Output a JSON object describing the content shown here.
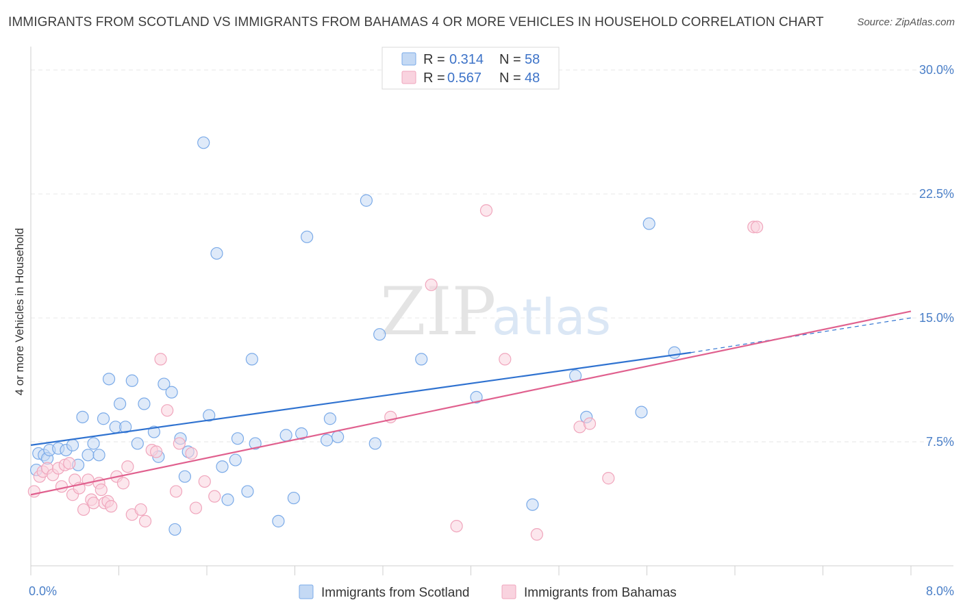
{
  "chart_data": {
    "type": "scatter",
    "title": "IMMIGRANTS FROM SCOTLAND VS IMMIGRANTS FROM BAHAMAS 4 OR MORE VEHICLES IN HOUSEHOLD CORRELATION CHART",
    "source": "Source: ZipAtlas.com",
    "xlabel": "",
    "ylabel": "4 or more Vehicles in Household",
    "xlim": [
      0,
      8
    ],
    "ylim": [
      0,
      31
    ],
    "x_tick_labels": [
      {
        "value": 0,
        "label": "0.0%"
      },
      {
        "value": 8,
        "label": "8.0%"
      }
    ],
    "y_tick_labels": [
      {
        "value": 7.5,
        "label": "7.5%"
      },
      {
        "value": 15,
        "label": "15.0%"
      },
      {
        "value": 22.5,
        "label": "22.5%"
      },
      {
        "value": 30,
        "label": "30.0%"
      }
    ],
    "watermark": {
      "zip": "ZIP",
      "atlas": "atlas"
    },
    "legend": [
      {
        "r_label": "R =",
        "r_value": "0.314",
        "n_label": "N =",
        "n_value": "58"
      },
      {
        "r_label": "R =",
        "r_value": "0.567",
        "n_label": "N =",
        "n_value": "48"
      }
    ],
    "series": [
      {
        "name": "Immigrants from Scotland",
        "color": "#7aaae8",
        "fill": "#c4d9f4",
        "line_color": "#2f72d0",
        "trend": {
          "x0": 0.0,
          "y0": 7.3,
          "x1": 6.0,
          "y1": 12.9,
          "dash_to_x": 8.0,
          "dash_to_y": 15.0
        },
        "points": [
          [
            0.05,
            5.8
          ],
          [
            0.07,
            6.8
          ],
          [
            0.12,
            6.7
          ],
          [
            0.15,
            6.5
          ],
          [
            0.17,
            7.0
          ],
          [
            0.25,
            7.1
          ],
          [
            0.32,
            7.0
          ],
          [
            0.38,
            7.3
          ],
          [
            0.43,
            6.1
          ],
          [
            0.47,
            9.0
          ],
          [
            0.52,
            6.7
          ],
          [
            0.57,
            7.4
          ],
          [
            0.62,
            6.7
          ],
          [
            0.66,
            8.9
          ],
          [
            0.71,
            11.3
          ],
          [
            0.77,
            8.4
          ],
          [
            0.81,
            9.8
          ],
          [
            0.86,
            8.4
          ],
          [
            0.92,
            11.2
          ],
          [
            0.97,
            7.4
          ],
          [
            1.03,
            9.8
          ],
          [
            1.12,
            8.1
          ],
          [
            1.16,
            6.6
          ],
          [
            1.21,
            11.0
          ],
          [
            1.28,
            10.5
          ],
          [
            1.31,
            2.2
          ],
          [
            1.36,
            7.7
          ],
          [
            1.4,
            5.4
          ],
          [
            1.43,
            6.9
          ],
          [
            1.57,
            25.6
          ],
          [
            1.62,
            9.1
          ],
          [
            1.69,
            18.9
          ],
          [
            1.74,
            6.0
          ],
          [
            1.79,
            4.0
          ],
          [
            1.86,
            6.4
          ],
          [
            1.88,
            7.7
          ],
          [
            1.97,
            4.5
          ],
          [
            2.01,
            12.5
          ],
          [
            2.04,
            7.4
          ],
          [
            2.25,
            2.7
          ],
          [
            2.32,
            7.9
          ],
          [
            2.39,
            4.1
          ],
          [
            2.46,
            8.0
          ],
          [
            2.51,
            19.9
          ],
          [
            2.69,
            7.6
          ],
          [
            2.72,
            8.9
          ],
          [
            2.79,
            7.8
          ],
          [
            3.05,
            22.1
          ],
          [
            3.13,
            7.4
          ],
          [
            3.17,
            14.0
          ],
          [
            3.55,
            12.5
          ],
          [
            4.05,
            10.2
          ],
          [
            4.56,
            3.7
          ],
          [
            4.95,
            11.5
          ],
          [
            5.05,
            9.0
          ],
          [
            5.55,
            9.3
          ],
          [
            5.62,
            20.7
          ],
          [
            5.85,
            12.9
          ]
        ]
      },
      {
        "name": "Immigrants from Bahamas",
        "color": "#f0a5bc",
        "fill": "#f9d3df",
        "line_color": "#e0608e",
        "trend": {
          "x0": 0.0,
          "y0": 4.3,
          "x1": 8.0,
          "y1": 15.4
        },
        "points": [
          [
            0.03,
            4.5
          ],
          [
            0.08,
            5.4
          ],
          [
            0.11,
            5.7
          ],
          [
            0.15,
            5.9
          ],
          [
            0.2,
            5.5
          ],
          [
            0.25,
            5.9
          ],
          [
            0.28,
            4.8
          ],
          [
            0.31,
            6.1
          ],
          [
            0.35,
            6.2
          ],
          [
            0.38,
            4.3
          ],
          [
            0.4,
            5.2
          ],
          [
            0.44,
            4.7
          ],
          [
            0.48,
            3.4
          ],
          [
            0.52,
            5.2
          ],
          [
            0.55,
            4.0
          ],
          [
            0.57,
            3.8
          ],
          [
            0.62,
            5.0
          ],
          [
            0.64,
            4.6
          ],
          [
            0.67,
            3.8
          ],
          [
            0.7,
            3.9
          ],
          [
            0.73,
            3.6
          ],
          [
            0.78,
            5.4
          ],
          [
            0.84,
            5.0
          ],
          [
            0.88,
            6.0
          ],
          [
            0.92,
            3.1
          ],
          [
            1.0,
            3.4
          ],
          [
            1.04,
            2.7
          ],
          [
            1.1,
            7.0
          ],
          [
            1.14,
            6.9
          ],
          [
            1.18,
            12.5
          ],
          [
            1.24,
            9.4
          ],
          [
            1.32,
            4.5
          ],
          [
            1.35,
            7.4
          ],
          [
            1.46,
            6.8
          ],
          [
            1.5,
            3.5
          ],
          [
            1.58,
            5.1
          ],
          [
            1.67,
            4.2
          ],
          [
            3.27,
            9.0
          ],
          [
            3.64,
            17.0
          ],
          [
            3.87,
            2.4
          ],
          [
            4.14,
            21.5
          ],
          [
            4.31,
            12.5
          ],
          [
            4.6,
            1.9
          ],
          [
            4.99,
            8.4
          ],
          [
            5.08,
            8.6
          ],
          [
            5.25,
            5.3
          ],
          [
            6.57,
            20.5
          ],
          [
            6.6,
            20.5
          ]
        ]
      }
    ]
  }
}
